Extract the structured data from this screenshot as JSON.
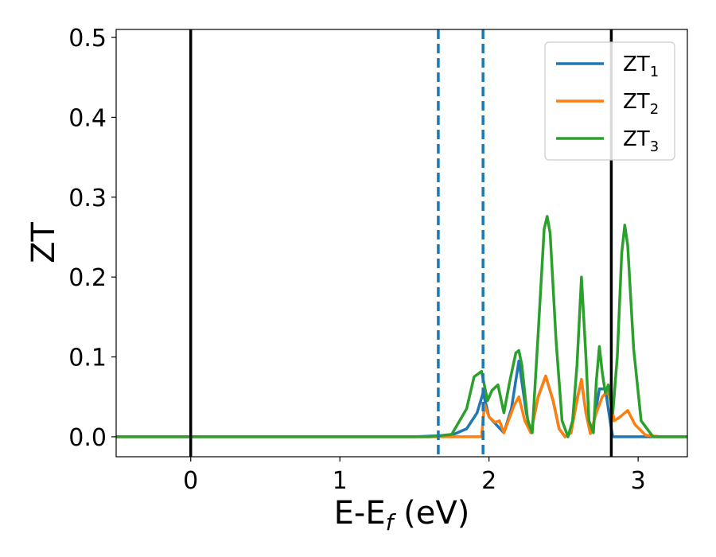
{
  "chart_data": {
    "type": "line",
    "xlabel_main": "E-E",
    "xlabel_sub": "f",
    "xlabel_unit": " (eV)",
    "ylabel": "ZT",
    "xlim": [
      -0.5,
      3.33
    ],
    "ylim": [
      -0.025,
      0.51
    ],
    "xticks": [
      {
        "value": 0,
        "label": "0"
      },
      {
        "value": 1,
        "label": "1"
      },
      {
        "value": 2,
        "label": "2"
      },
      {
        "value": 3,
        "label": "3"
      }
    ],
    "yticks": [
      {
        "value": 0.0,
        "label": "0.0"
      },
      {
        "value": 0.1,
        "label": "0.1"
      },
      {
        "value": 0.2,
        "label": "0.2"
      },
      {
        "value": 0.3,
        "label": "0.3"
      },
      {
        "value": 0.4,
        "label": "0.4"
      },
      {
        "value": 0.5,
        "label": "0.5"
      }
    ],
    "vlines": [
      {
        "x": 0.0,
        "style": "solid",
        "color": "#000000"
      },
      {
        "x": 2.82,
        "style": "solid",
        "color": "#000000"
      },
      {
        "x": 1.66,
        "style": "dashed",
        "color": "#1f77b4"
      },
      {
        "x": 1.96,
        "style": "dashed",
        "color": "#1f77b4"
      }
    ],
    "legend_position": "top-right",
    "series": [
      {
        "name": "ZT",
        "sub": "1",
        "color": "#1f77b4",
        "x": [
          -0.5,
          1.5,
          1.75,
          1.85,
          1.92,
          1.96,
          1.97,
          2.0,
          2.05,
          2.1,
          2.15,
          2.2,
          2.25,
          2.28,
          2.33,
          2.38,
          2.43,
          2.47,
          2.51,
          2.55,
          2.58,
          2.62,
          2.65,
          2.68,
          2.7,
          2.74,
          2.78,
          2.82,
          2.83,
          3.33
        ],
        "y": [
          0.0,
          0.0,
          0.002,
          0.01,
          0.03,
          0.055,
          0.048,
          0.025,
          0.015,
          0.005,
          0.035,
          0.095,
          0.03,
          0.005,
          0.05,
          0.076,
          0.045,
          0.01,
          0.0,
          0.005,
          0.04,
          0.07,
          0.03,
          0.004,
          0.015,
          0.06,
          0.06,
          0.01,
          0.0,
          0.0
        ]
      },
      {
        "name": "ZT",
        "sub": "2",
        "color": "#ff7f0e",
        "x": [
          -0.5,
          1.95,
          1.97,
          2.0,
          2.04,
          2.07,
          2.1,
          2.13,
          2.17,
          2.2,
          2.24,
          2.28,
          2.33,
          2.38,
          2.43,
          2.47,
          2.51,
          2.55,
          2.59,
          2.62,
          2.65,
          2.68,
          2.72,
          2.76,
          2.8,
          2.84,
          2.88,
          2.93,
          2.98,
          3.05,
          3.15,
          3.33
        ],
        "y": [
          0.0,
          0.0,
          0.04,
          0.025,
          0.018,
          0.02,
          0.005,
          0.02,
          0.04,
          0.05,
          0.02,
          0.005,
          0.05,
          0.076,
          0.045,
          0.01,
          0.0,
          0.005,
          0.045,
          0.072,
          0.03,
          0.004,
          0.03,
          0.05,
          0.058,
          0.02,
          0.025,
          0.033,
          0.015,
          0.002,
          0.0,
          0.0
        ]
      },
      {
        "name": "ZT",
        "sub": "3",
        "color": "#2ca02c",
        "x": [
          -0.5,
          1.6,
          1.75,
          1.85,
          1.9,
          1.95,
          1.99,
          2.02,
          2.06,
          2.1,
          2.14,
          2.18,
          2.2,
          2.22,
          2.26,
          2.29,
          2.33,
          2.37,
          2.39,
          2.41,
          2.45,
          2.49,
          2.53,
          2.56,
          2.59,
          2.62,
          2.65,
          2.67,
          2.7,
          2.72,
          2.74,
          2.76,
          2.78,
          2.8,
          2.83,
          2.86,
          2.89,
          2.91,
          2.93,
          2.97,
          3.02,
          3.1,
          3.33
        ],
        "y": [
          0.0,
          0.0,
          0.003,
          0.035,
          0.075,
          0.082,
          0.045,
          0.058,
          0.065,
          0.03,
          0.07,
          0.105,
          0.108,
          0.09,
          0.02,
          0.005,
          0.13,
          0.26,
          0.276,
          0.255,
          0.12,
          0.02,
          0.0,
          0.02,
          0.09,
          0.2,
          0.1,
          0.02,
          0.005,
          0.07,
          0.113,
          0.08,
          0.055,
          0.065,
          0.03,
          0.1,
          0.23,
          0.265,
          0.24,
          0.11,
          0.02,
          0.0,
          0.0
        ]
      }
    ]
  }
}
